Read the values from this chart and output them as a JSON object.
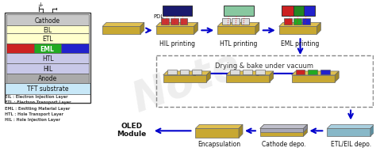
{
  "bg_color": "#ffffff",
  "watermark": "Note",
  "legend_lines": [
    "EIL : Electron Injection Layer",
    "ETL : Electron Transport Layer",
    "EML : Emitting Material Layer",
    "HTL : Hole Transport Layer",
    "HIL : Hole Injection Layer"
  ],
  "process_steps_top": [
    "HIL printing",
    "HTL printing",
    "EML printing"
  ],
  "process_steps_mid": [
    "Drying & bake under vacuum"
  ],
  "process_steps_bot": [
    "ETL/EIL depo.",
    "Cathode depo.",
    "Encapsulation"
  ],
  "oled_label": "OLED\nModule",
  "pdl_label": "PDL",
  "arrow_color": "#0000cc",
  "printhead_dark": "#1a1a6e",
  "printhead_htl": "#88c8a0",
  "printhead_eml_r": "#cc2222",
  "printhead_eml_g": "#228822",
  "printhead_eml_b": "#2222cc"
}
